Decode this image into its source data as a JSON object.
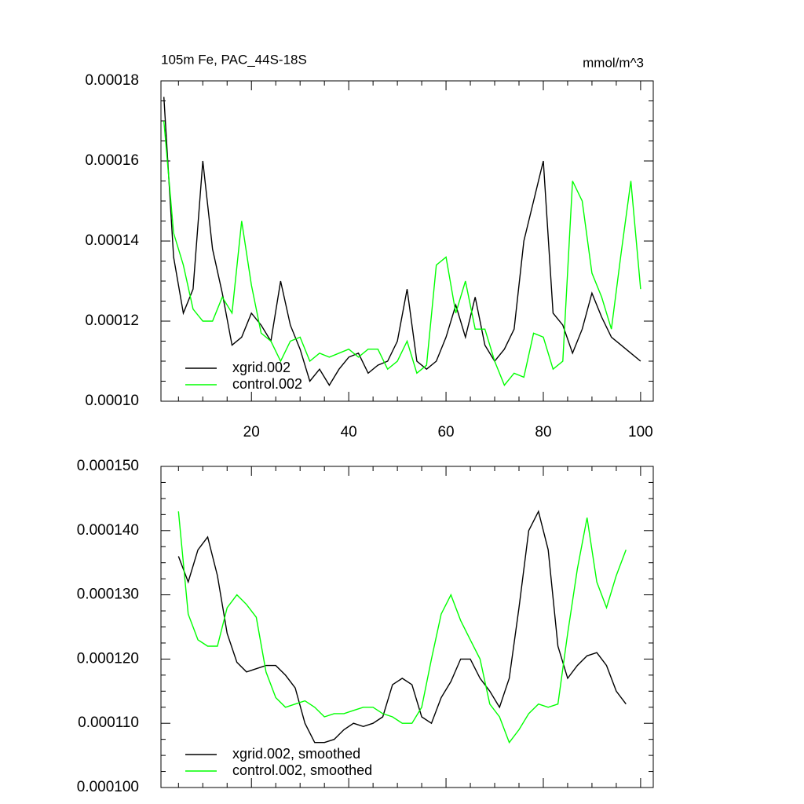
{
  "chart_data": [
    {
      "type": "line",
      "title": "105m Fe, PAC_44S-18S",
      "units": "mmol/m^3",
      "x": [
        2,
        4,
        6,
        8,
        10,
        12,
        14,
        16,
        18,
        20,
        22,
        24,
        26,
        28,
        30,
        32,
        34,
        36,
        38,
        40,
        42,
        44,
        46,
        48,
        50,
        52,
        54,
        56,
        58,
        60,
        62,
        64,
        66,
        68,
        70,
        72,
        74,
        76,
        78,
        80,
        82,
        84,
        86,
        88,
        90,
        92,
        94,
        96,
        98,
        100
      ],
      "series": [
        {
          "name": "xgrid.002",
          "color": "#000000",
          "values": [
            0.000176,
            0.000136,
            0.000122,
            0.000128,
            0.00016,
            0.000138,
            0.000127,
            0.000114,
            0.000116,
            0.000122,
            0.000119,
            0.000115,
            0.00013,
            0.000119,
            0.000113,
            0.000105,
            0.000108,
            0.000104,
            0.000108,
            0.000111,
            0.000112,
            0.000107,
            0.000109,
            0.00011,
            0.000115,
            0.000128,
            0.00011,
            0.000108,
            0.00011,
            0.000116,
            0.000124,
            0.000116,
            0.000126,
            0.000114,
            0.00011,
            0.000113,
            0.000118,
            0.00014,
            0.00015,
            0.00016,
            0.000122,
            0.000119,
            0.000112,
            0.000118,
            0.000127,
            0.000121,
            0.000116,
            0.000114,
            0.000112,
            0.00011
          ]
        },
        {
          "name": "control.002",
          "color": "#00ff00",
          "values": [
            0.00017,
            0.000142,
            0.000134,
            0.000123,
            0.00012,
            0.00012,
            0.000126,
            0.000122,
            0.000145,
            0.000129,
            0.000117,
            0.000115,
            0.00011,
            0.000115,
            0.000116,
            0.00011,
            0.000112,
            0.000111,
            0.000112,
            0.000113,
            0.000111,
            0.000113,
            0.000113,
            0.000108,
            0.00011,
            0.000115,
            0.000107,
            0.000109,
            0.000134,
            0.000136,
            0.000122,
            0.00013,
            0.000118,
            0.000118,
            0.00011,
            0.000104,
            0.000107,
            0.000106,
            0.000117,
            0.000116,
            0.000108,
            0.00011,
            0.000155,
            0.00015,
            0.000132,
            0.000126,
            0.000118,
            0.000137,
            0.000155,
            0.000128
          ]
        }
      ],
      "xlim": [
        1.4,
        102.6
      ],
      "xticks": [
        20,
        40,
        60,
        80,
        100
      ],
      "show_xtick_labels": true,
      "ylim": [
        0.0001,
        0.00018
      ],
      "yticks": [
        {
          "value": 0.0001,
          "label": "0.00010"
        },
        0.00012,
        0.00014,
        0.00016,
        0.00018
      ],
      "legend": "lower left"
    },
    {
      "type": "line",
      "x": [
        5,
        7,
        9,
        11,
        13,
        15,
        17,
        19,
        21,
        23,
        25,
        27,
        29,
        31,
        33,
        35,
        37,
        39,
        41,
        43,
        45,
        47,
        49,
        51,
        53,
        55,
        57,
        59,
        61,
        63,
        65,
        67,
        69,
        71,
        73,
        75,
        77,
        79,
        81,
        83,
        85,
        87,
        89,
        91,
        93,
        95,
        97
      ],
      "series": [
        {
          "name": "xgrid.002, smoothed",
          "color": "#000000",
          "values": [
            0.000136,
            0.000132,
            0.000137,
            0.000139,
            0.000133,
            0.000124,
            0.0001195,
            0.000118,
            0.0001185,
            0.000119,
            0.000119,
            0.0001175,
            0.0001155,
            0.00011,
            0.000107,
            0.000107,
            0.0001075,
            0.000109,
            0.00011,
            0.0001095,
            0.00011,
            0.000111,
            0.000116,
            0.000117,
            0.000116,
            0.000111,
            0.00011,
            0.000114,
            0.0001165,
            0.00012,
            0.00012,
            0.000117,
            0.000115,
            0.0001125,
            0.000117,
            0.000128,
            0.00014,
            0.000143,
            0.000137,
            0.000122,
            0.000117,
            0.000119,
            0.0001205,
            0.000121,
            0.000119,
            0.000115,
            0.000113
          ]
        },
        {
          "name": "control.002, smoothed",
          "color": "#00ff00",
          "values": [
            0.000143,
            0.000127,
            0.000123,
            0.000122,
            0.000122,
            0.000128,
            0.00013,
            0.0001285,
            0.0001265,
            0.000118,
            0.000114,
            0.0001125,
            0.000113,
            0.0001135,
            0.0001125,
            0.000111,
            0.0001115,
            0.0001115,
            0.000112,
            0.0001125,
            0.0001125,
            0.0001115,
            0.000111,
            0.00011,
            0.00011,
            0.0001125,
            0.00012,
            0.000127,
            0.00013,
            0.000126,
            0.000123,
            0.00012,
            0.000113,
            0.000111,
            0.000107,
            0.000109,
            0.0001115,
            0.000113,
            0.0001125,
            0.000113,
            0.000124,
            0.000134,
            0.000142,
            0.000132,
            0.000128,
            0.000133,
            0.000137
          ]
        }
      ],
      "xlim": [
        1.4,
        102.6
      ],
      "xticks": [
        20,
        40,
        60,
        80,
        100
      ],
      "show_xtick_labels": false,
      "ylim": [
        0.0001,
        0.00015
      ],
      "yticks": [
        {
          "value": 0.0001,
          "label": "0.000100"
        },
        {
          "value": 0.00011,
          "label": "0.000110"
        },
        {
          "value": 0.00012,
          "label": "0.000120"
        },
        {
          "value": 0.00013,
          "label": "0.000130"
        },
        {
          "value": 0.00014,
          "label": "0.000140"
        },
        {
          "value": 0.00015,
          "label": "0.000150"
        }
      ],
      "legend": "lower left"
    }
  ]
}
